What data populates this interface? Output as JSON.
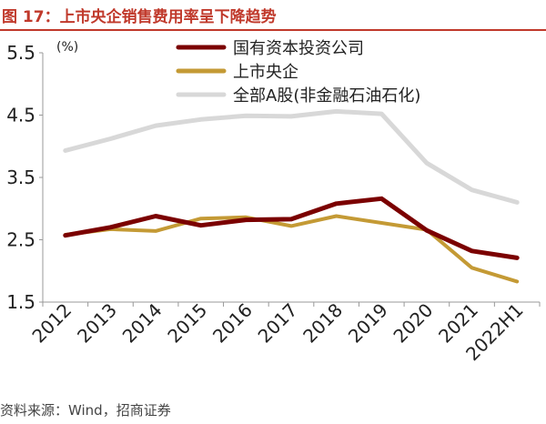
{
  "figure_title": "图 17：上市央企销售费用率呈下降趋势",
  "source": "资料来源：Wind，招商证券",
  "colors": {
    "title": "#c0392b",
    "series": [
      "#7b0000",
      "#c49a35",
      "#d8d8d8"
    ],
    "axis": "#999999",
    "text": "#222222"
  },
  "chart_data": {
    "type": "line",
    "unit_label": "(%)",
    "ylim": [
      1.5,
      5.5
    ],
    "yticks": [
      "1.5",
      "2.5",
      "3.5",
      "4.5",
      "5.5"
    ],
    "grid": false,
    "legend_position": "top-center",
    "categories": [
      "2012",
      "2013",
      "2014",
      "2015",
      "2016",
      "2017",
      "2018",
      "2019",
      "2020",
      "2021",
      "2022H1"
    ],
    "series": [
      {
        "name": "国有资本投资公司",
        "values": [
          2.57,
          2.7,
          2.88,
          2.73,
          2.82,
          2.83,
          3.08,
          3.16,
          2.65,
          2.32,
          2.21
        ]
      },
      {
        "name": "上市央企",
        "values": [
          2.58,
          2.67,
          2.64,
          2.84,
          2.86,
          2.72,
          2.88,
          2.77,
          2.66,
          2.05,
          1.83
        ]
      },
      {
        "name": "全部A股(非金融石油石化)",
        "values": [
          3.93,
          4.12,
          4.33,
          4.43,
          4.49,
          4.48,
          4.56,
          4.52,
          3.73,
          3.3,
          3.1
        ]
      }
    ]
  }
}
